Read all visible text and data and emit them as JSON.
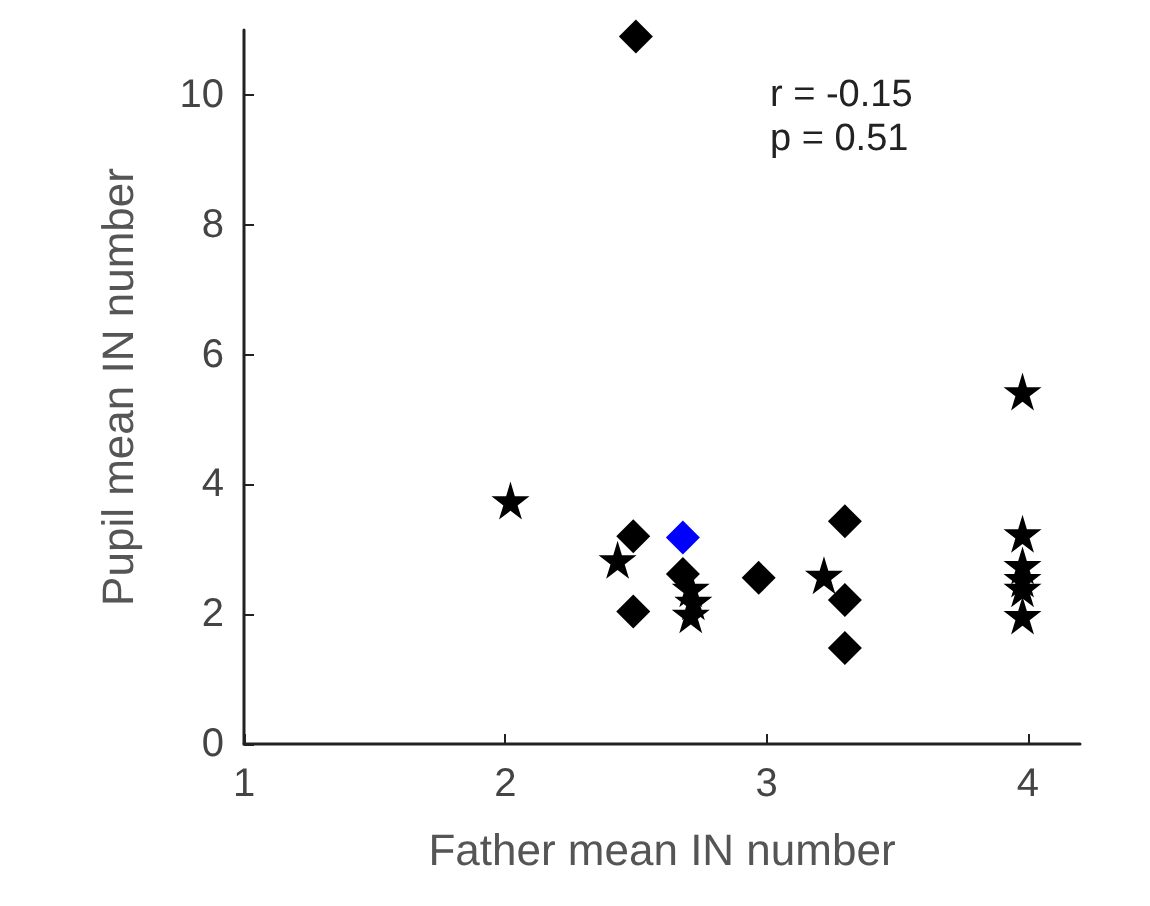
{
  "chart_data": {
    "type": "scatter",
    "xlabel": "Father mean IN number",
    "ylabel": "Pupil mean IN number",
    "xlim": [
      1,
      4.2
    ],
    "xticks": [
      1,
      2,
      3,
      4
    ],
    "ylim": [
      0,
      11
    ],
    "yticks": [
      0,
      2,
      4,
      6,
      8,
      10
    ],
    "grid": false,
    "annotations": [
      "r = -0.15",
      "p = 0.51"
    ],
    "series": [
      {
        "color": "#000000",
        "marker": "diamond",
        "x": [
          2.5,
          2.49,
          2.49,
          2.68,
          2.97,
          3.3,
          3.3,
          3.3
        ],
        "values": [
          10.9,
          3.2,
          2.04,
          2.62,
          2.56,
          3.43,
          2.22,
          1.48
        ]
      },
      {
        "color": "#000000",
        "marker": "star",
        "x": [
          2.02,
          2.43,
          2.71,
          2.72,
          2.71,
          3.22,
          3.98,
          3.98,
          3.98,
          3.98,
          3.98,
          3.98
        ],
        "values": [
          3.75,
          2.84,
          2.4,
          2.2,
          2.0,
          2.6,
          5.43,
          3.24,
          2.75,
          2.55,
          2.4,
          1.98
        ]
      },
      {
        "color": "#0000ff",
        "marker": "diamond",
        "x": [
          2.68
        ],
        "values": [
          3.18
        ]
      }
    ]
  }
}
